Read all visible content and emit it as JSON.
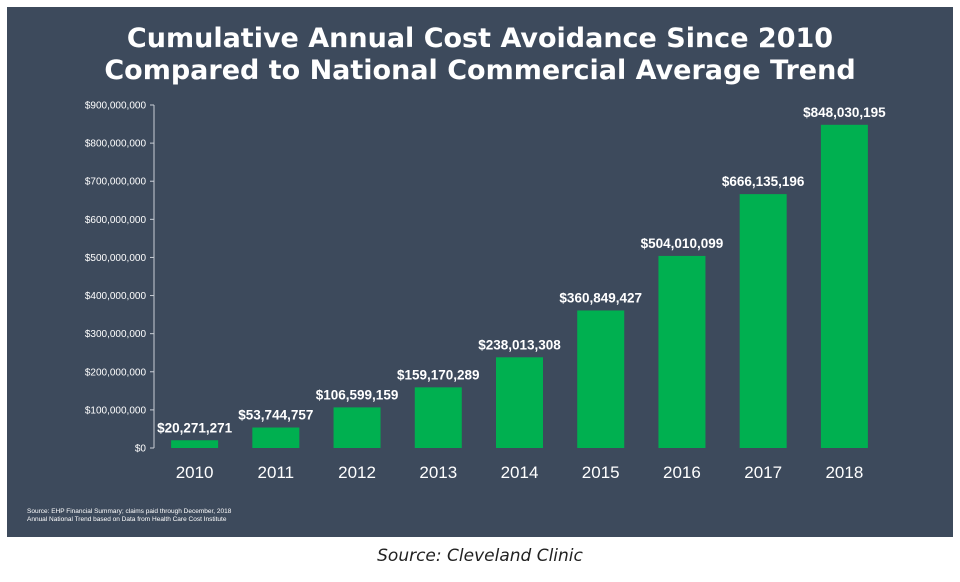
{
  "chart_data": {
    "type": "bar",
    "title": "Cumulative Annual Cost Avoidance Since 2010",
    "subtitle": "Compared to National Commercial Average Trend",
    "xlabel": "",
    "ylabel": "",
    "categories": [
      "2010",
      "2011",
      "2012",
      "2013",
      "2014",
      "2015",
      "2016",
      "2017",
      "2018"
    ],
    "values": [
      20271271,
      53744757,
      106599159,
      159170289,
      238013308,
      360849427,
      504010099,
      666135196,
      848030195
    ],
    "data_labels": [
      "$20,271,271",
      "$53,744,757",
      "$106,599,159",
      "$159,170,289",
      "$238,013,308",
      "$360,849,427",
      "$504,010,099",
      "$666,135,196",
      "$848,030,195"
    ],
    "ylim": [
      0,
      900000000
    ],
    "yticks": [
      0,
      100000000,
      200000000,
      300000000,
      400000000,
      500000000,
      600000000,
      700000000,
      800000000,
      900000000
    ],
    "ytick_labels": [
      "$0",
      "$100,000,000",
      "$200,000,000",
      "$300,000,000",
      "$400,000,000",
      "$500,000,000",
      "$600,000,000",
      "$700,000,000",
      "$800,000,000",
      "$900,000,000"
    ],
    "grid": false,
    "legend": "none",
    "bar_color": "#00b050",
    "background_color": "#3d4a5c"
  },
  "footnotes": [
    "Source: EHP Financial Summary; claims paid through December, 2018",
    "Annual National Trend based on Data from Health Care Cost Institute"
  ],
  "caption": "Source: Cleveland Clinic"
}
